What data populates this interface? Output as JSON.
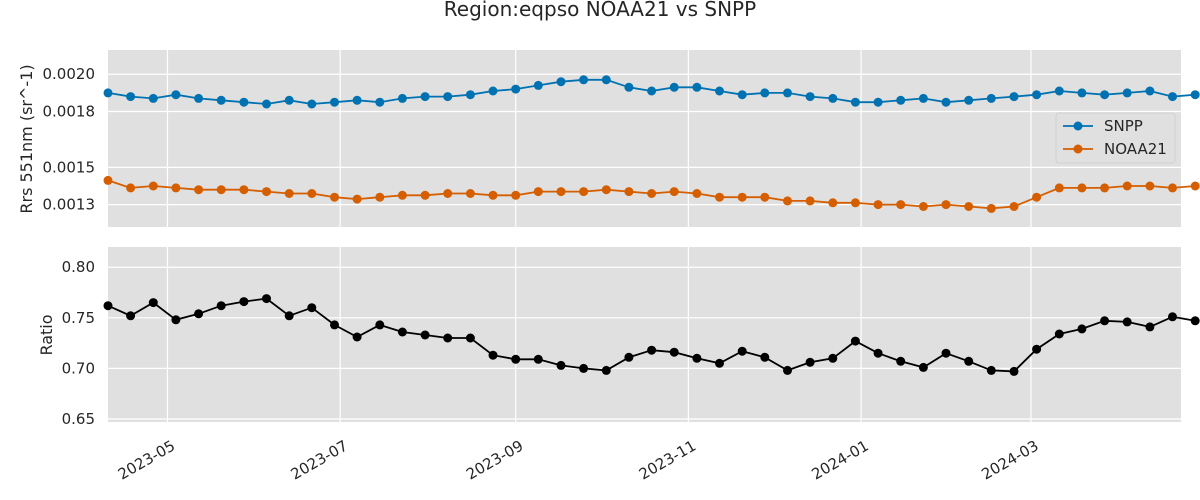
{
  "title": "Region:eqpso NOAA21 vs SNPP",
  "colors": {
    "snpp": "#0072b2",
    "noaa21": "#d55e00",
    "ratio": "#000000",
    "panel_bg": "#e0e0e0"
  },
  "chart_data": [
    {
      "type": "line",
      "panel": "top",
      "ylabel": "Rrs 551nm (sr^-1)",
      "ylim": [
        0.00118,
        0.00213
      ],
      "yticks": [
        0.0013,
        0.0015,
        0.0018,
        0.002
      ],
      "ytick_labels": [
        "0.0013",
        "0.0015",
        "0.0018",
        "0.0020"
      ],
      "legend": "center-right",
      "series": [
        {
          "name": "SNPP",
          "color": "#0072b2",
          "values": [
            0.0019,
            0.00188,
            0.00187,
            0.00189,
            0.00187,
            0.00186,
            0.00185,
            0.00184,
            0.00186,
            0.00184,
            0.00185,
            0.00186,
            0.00185,
            0.00187,
            0.00188,
            0.00188,
            0.00189,
            0.00191,
            0.00192,
            0.00194,
            0.00196,
            0.00197,
            0.00197,
            0.00193,
            0.00191,
            0.00193,
            0.00193,
            0.00191,
            0.00189,
            0.0019,
            0.0019,
            0.00188,
            0.00187,
            0.00185,
            0.00185,
            0.00186,
            0.00187,
            0.00185,
            0.00186,
            0.00187,
            0.00188,
            0.00189,
            0.00191,
            0.0019,
            0.00189,
            0.0019,
            0.00191,
            0.00188,
            0.00189
          ]
        },
        {
          "name": "NOAA21",
          "color": "#d55e00",
          "values": [
            0.00143,
            0.00139,
            0.0014,
            0.00139,
            0.00138,
            0.00138,
            0.00138,
            0.00137,
            0.00136,
            0.00136,
            0.00134,
            0.00133,
            0.00134,
            0.00135,
            0.00135,
            0.00136,
            0.00136,
            0.00135,
            0.00135,
            0.00137,
            0.00137,
            0.00137,
            0.00138,
            0.00137,
            0.00136,
            0.00137,
            0.00136,
            0.00134,
            0.00134,
            0.00134,
            0.00132,
            0.00132,
            0.00131,
            0.00131,
            0.0013,
            0.0013,
            0.00129,
            0.0013,
            0.00129,
            0.00128,
            0.00129,
            0.00134,
            0.00139,
            0.00139,
            0.00139,
            0.0014,
            0.0014,
            0.00139,
            0.0014
          ]
        }
      ]
    },
    {
      "type": "line",
      "panel": "bottom",
      "ylabel": "Ratio",
      "ylim": [
        0.647,
        0.82
      ],
      "yticks": [
        0.65,
        0.7,
        0.75,
        0.8
      ],
      "ytick_labels": [
        "0.65",
        "0.70",
        "0.75",
        "0.80"
      ],
      "series": [
        {
          "name": "",
          "color": "#000000",
          "values": [
            0.762,
            0.752,
            0.765,
            0.748,
            0.754,
            0.762,
            0.766,
            0.769,
            0.752,
            0.76,
            0.743,
            0.731,
            0.743,
            0.736,
            0.733,
            0.73,
            0.73,
            0.713,
            0.709,
            0.709,
            0.703,
            0.7,
            0.698,
            0.711,
            0.718,
            0.716,
            0.71,
            0.705,
            0.717,
            0.711,
            0.698,
            0.706,
            0.71,
            0.727,
            0.715,
            0.707,
            0.701,
            0.715,
            0.707,
            0.698,
            0.697,
            0.719,
            0.734,
            0.739,
            0.747,
            0.746,
            0.741,
            0.751,
            0.747
          ]
        }
      ]
    }
  ],
  "x_axis": {
    "start": "2023-04-10",
    "step_days": 8,
    "range": [
      "2023-04-10",
      "2024-04-23"
    ],
    "ticks": [
      "2023-05-01",
      "2023-07-01",
      "2023-09-01",
      "2023-11-01",
      "2024-01-01",
      "2024-03-01"
    ],
    "tick_labels": [
      "2023-05",
      "2023-07",
      "2023-09",
      "2023-11",
      "2024-01",
      "2024-03"
    ]
  }
}
